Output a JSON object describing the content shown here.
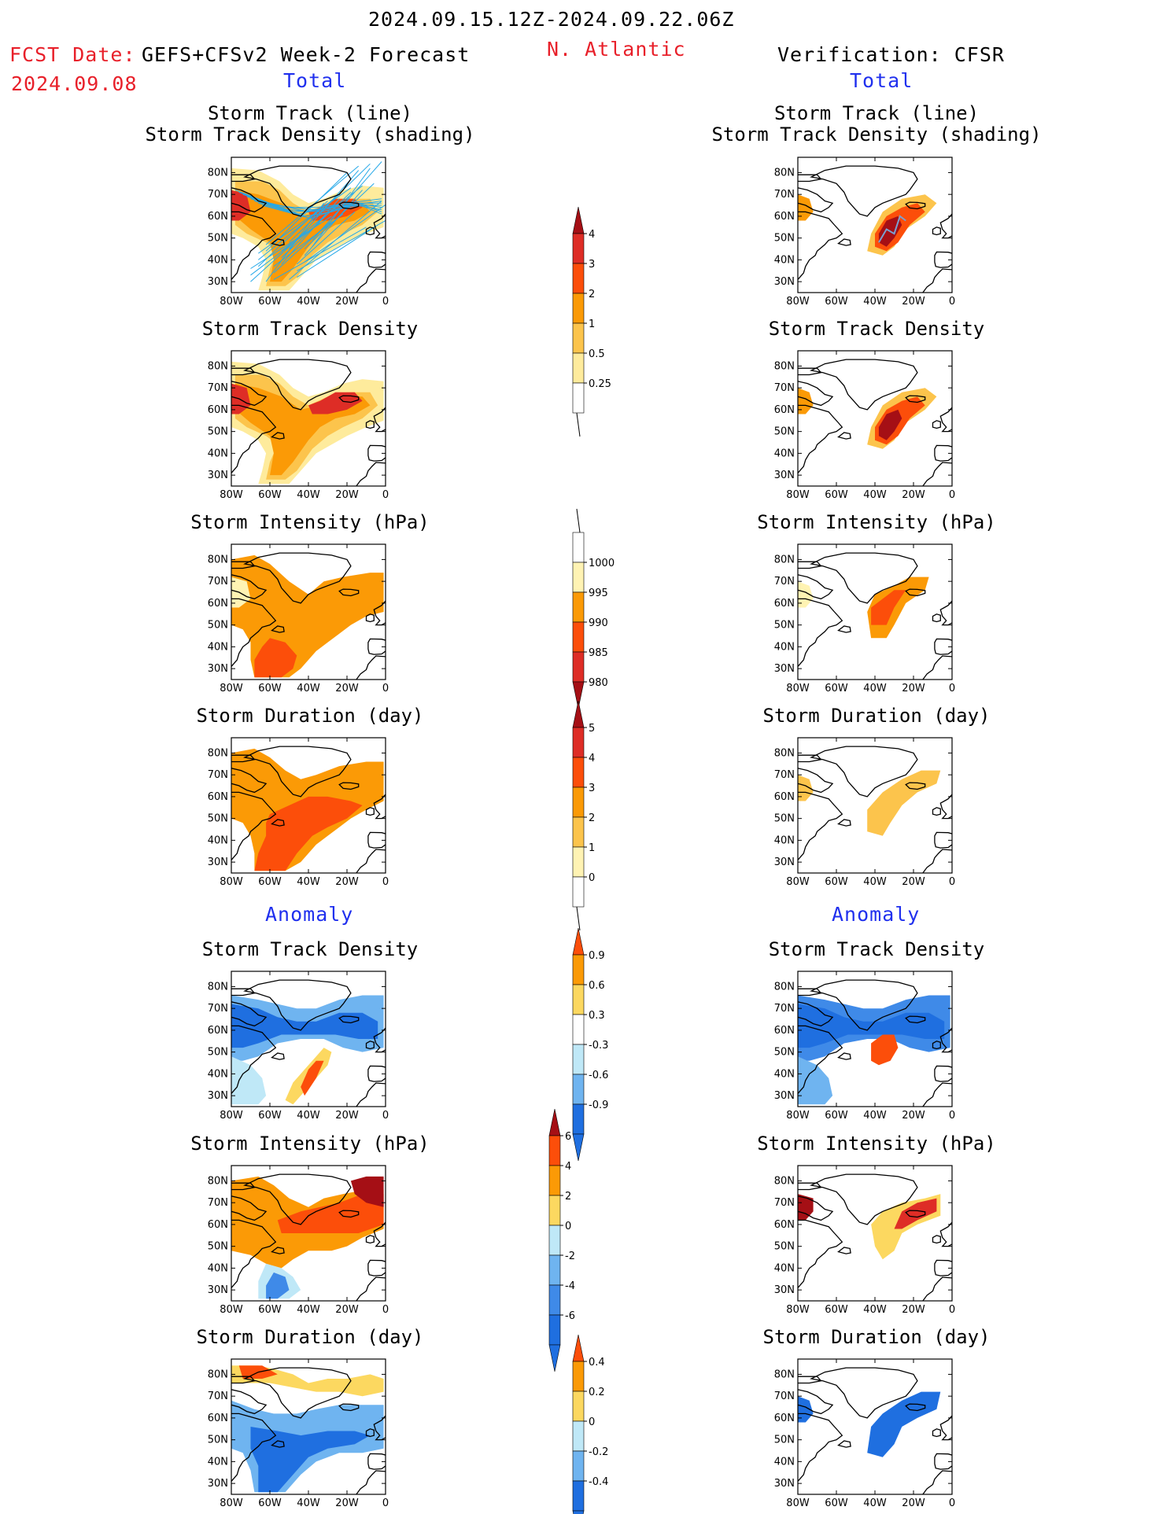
{
  "header": {
    "period": "2024.09.15.12Z-2024.09.22.06Z",
    "fcst_prefix": "FCST Date:",
    "model": "GEFS+CFSv2 Week-2 Forecast",
    "fcst_date": "2024.09.08",
    "region": "N. Atlantic",
    "verification": "Verification: CFSR"
  },
  "sections": {
    "total": "Total",
    "anomaly": "Anomaly"
  },
  "panel_titles": {
    "track_line": "Storm Track (line)",
    "track_shading": "Storm Track Density (shading)",
    "density": "Storm Track Density",
    "intensity": "Storm Intensity (hPa)",
    "duration": "Storm Duration (day)"
  },
  "axes": {
    "lat": [
      "80N",
      "70N",
      "60N",
      "50N",
      "40N",
      "30N"
    ],
    "lon": [
      "80W",
      "60W",
      "40W",
      "20W",
      "0"
    ]
  },
  "colorbars": [
    {
      "id": "cb-density",
      "labels": [
        "4",
        "3",
        "2",
        "1",
        "0.5",
        "0.25"
      ],
      "colors": [
        "#a50f15",
        "#de2d26",
        "#fc4e0a",
        "#fb9a06",
        "#fcc44c",
        "#feeb9c",
        "#ffffff"
      ]
    },
    {
      "id": "cb-intensity",
      "labels": [
        "1000",
        "995",
        "990",
        "985",
        "980"
      ],
      "colors": [
        "#ffffff",
        "#fff3b3",
        "#fb9a06",
        "#fc4e0a",
        "#de2d26",
        "#a50f15"
      ]
    },
    {
      "id": "cb-duration",
      "labels": [
        "5",
        "4",
        "3",
        "2",
        "1",
        "0"
      ],
      "colors": [
        "#a50f15",
        "#de2d26",
        "#fc4e0a",
        "#fb9a06",
        "#fcc44c",
        "#fff3b3",
        "#ffffff"
      ]
    },
    {
      "id": "cb-anom-density",
      "labels": [
        "0.9",
        "0.6",
        "0.3",
        "-0.3",
        "-0.6",
        "-0.9"
      ],
      "colors": [
        "#fc4e0a",
        "#fb9a06",
        "#fcd860",
        "#ffffff",
        "#bfe8f7",
        "#6fb4f0",
        "#1f6fe0"
      ]
    },
    {
      "id": "cb-anom-intensity",
      "labels": [
        "6",
        "4",
        "2",
        "0",
        "-2",
        "-4",
        "-6"
      ],
      "colors": [
        "#a50f15",
        "#fc4e0a",
        "#fb9a06",
        "#fcd860",
        "#bfe8f7",
        "#6fb4f0",
        "#3f8ae8",
        "#1f6fe0"
      ]
    },
    {
      "id": "cb-anom-duration",
      "labels": [
        "0.4",
        "0.2",
        "0",
        "-0.2",
        "-0.4"
      ],
      "colors": [
        "#fc4e0a",
        "#fb9a06",
        "#fcd860",
        "#bfe8f7",
        "#6fb4f0",
        "#1f6fe0"
      ]
    }
  ]
}
